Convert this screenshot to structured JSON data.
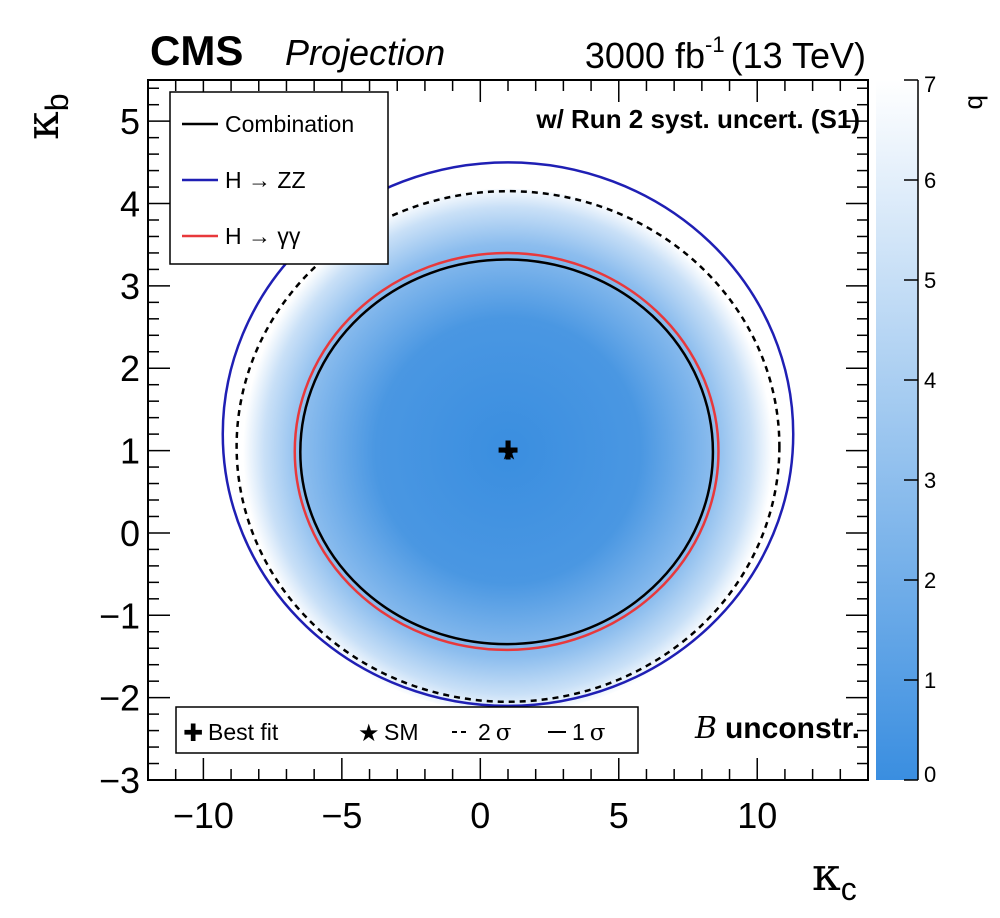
{
  "header": {
    "experiment": "CMS",
    "tag": "Projection",
    "lumi_value": "3000 fb",
    "lumi_exp": "-1",
    "energy": "(13 TeV)"
  },
  "annotations": {
    "scenario": "w/ Run 2 syst. uncert. (S1)",
    "b_symbol": "B",
    "b_text": "unconstr."
  },
  "colors": {
    "combination": "#000000",
    "hzz": "#1f1fb4",
    "hgg": "#e8383b",
    "map_low": "#3a8ee0",
    "map_high": "#ffffff"
  },
  "chart_data": {
    "type": "heatmap",
    "title": "",
    "xlabel": "κ",
    "xlabel_sub": "c",
    "ylabel": "κ",
    "ylabel_sub": "b",
    "xlim": [
      -12,
      14
    ],
    "ylim": [
      -3,
      5.5
    ],
    "x_ticks": [
      -10,
      -5,
      0,
      5,
      10
    ],
    "x_tick_labels": [
      "−10",
      "−5",
      "0",
      "5",
      "10"
    ],
    "y_ticks": [
      -3,
      -2,
      -1,
      0,
      1,
      2,
      3,
      4,
      5
    ],
    "y_tick_labels": [
      "−3",
      "−2",
      "−1",
      "0",
      "1",
      "2",
      "3",
      "4",
      "5"
    ],
    "colorbar": {
      "label": "q",
      "range": [
        0,
        7
      ],
      "ticks": [
        0,
        1,
        2,
        3,
        4,
        5,
        6,
        7
      ],
      "tick_labels": [
        "0",
        "1",
        "2",
        "3",
        "4",
        "5",
        "6",
        "7"
      ]
    },
    "best_fit": {
      "x": 1.0,
      "y": 1.0
    },
    "sm": {
      "x": 1.0,
      "y": 1.0
    },
    "series": [
      {
        "name": "Combination",
        "level": "1σ",
        "style": "solid",
        "center": [
          1.0,
          1.0
        ],
        "x_range": [
          -6.5,
          8.4
        ],
        "y_range": [
          -1.35,
          3.32
        ]
      },
      {
        "name": "Combination",
        "level": "2σ",
        "style": "dashed",
        "center": [
          1.0,
          1.0
        ],
        "x_range": [
          -8.8,
          10.8
        ],
        "y_range": [
          -2.05,
          4.15
        ]
      },
      {
        "name": "H → ZZ",
        "level": "1σ",
        "style": "solid",
        "center": [
          1.0,
          1.2
        ],
        "x_range": [
          -9.3,
          11.3
        ],
        "y_range": [
          -2.1,
          4.5
        ]
      },
      {
        "name": "H → γγ",
        "level": "1σ",
        "style": "solid",
        "center": [
          1.0,
          1.0
        ],
        "x_range": [
          -6.7,
          8.6
        ],
        "y_range": [
          -1.42,
          3.4
        ]
      }
    ],
    "legend": {
      "placement": "top-left",
      "entries": [
        {
          "label": "Combination",
          "color_key": "combination"
        },
        {
          "label": "H → ZZ",
          "color_key": "hzz"
        },
        {
          "label": "H → γγ",
          "color_key": "hgg"
        }
      ]
    },
    "marker_legend": {
      "placement": "bottom-left",
      "best_fit": "Best fit",
      "sm": "SM",
      "two_sigma_prefix": "2",
      "one_sigma_prefix": "1",
      "sigma": "σ"
    }
  }
}
